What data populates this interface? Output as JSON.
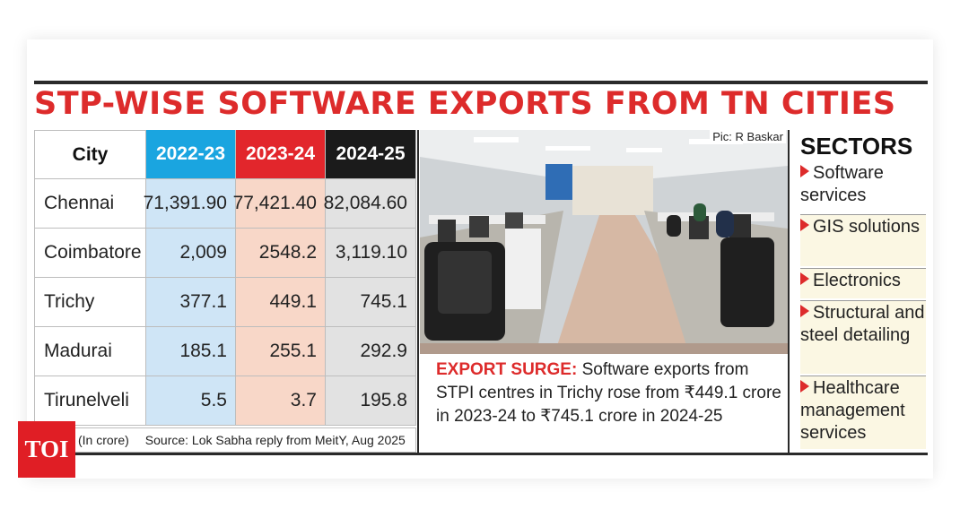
{
  "title": "STP-WISE SOFTWARE EXPORTS FROM TN CITIES",
  "chart_data": {
    "type": "table",
    "columns": [
      "City",
      "2022-23",
      "2023-24",
      "2024-25"
    ],
    "rows": [
      [
        "Chennai",
        "71,391.90",
        "77,421.40",
        "82,084.60"
      ],
      [
        "Coimbatore",
        "2,009",
        "2548.2",
        "3,119.10"
      ],
      [
        "Trichy",
        "377.1",
        "449.1",
        "745.1"
      ],
      [
        "Madurai",
        "185.1",
        "255.1",
        "292.9"
      ],
      [
        "Tirunelveli",
        "5.5",
        "3.7",
        "195.8"
      ]
    ],
    "header_colors": [
      "#ffffff",
      "#1aa5e0",
      "#e2262c",
      "#1b1b1b"
    ],
    "column_tints": [
      "#ffffff",
      "#cfe5f6",
      "#f8d7c8",
      "#e2e2e2"
    ]
  },
  "table_note": {
    "unit": "(In crore)",
    "source": "Source: Lok Sabha reply from MeitY, Aug 2025"
  },
  "photo": {
    "credit": "Pic: R Baskar"
  },
  "caption": {
    "lead": "EXPORT SURGE:",
    "text": " Software exports from STPI centres in Trichy rose from ₹449.1 crore in 2023-24 to ₹745.1 crore in 2024-25"
  },
  "sectors": {
    "title": "SECTORS",
    "items": [
      "Software services",
      "GIS solutions",
      "Electronics",
      "Structural and steel detailing",
      "Healthcare management services"
    ]
  },
  "logo": {
    "text": "TOI"
  },
  "colors": {
    "title_red": "#dd2b2b",
    "logo_red": "#e01e25"
  }
}
